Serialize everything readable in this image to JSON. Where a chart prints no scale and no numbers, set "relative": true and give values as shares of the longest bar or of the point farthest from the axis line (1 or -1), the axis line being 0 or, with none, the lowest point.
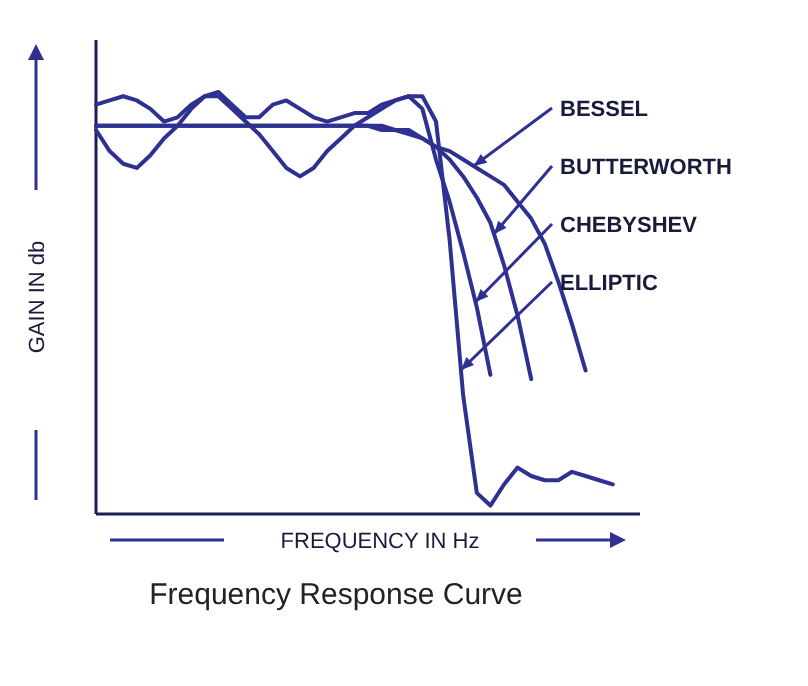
{
  "chart_data": {
    "type": "line",
    "relative": true,
    "title": "Frequency Response Curve",
    "xlabel": "FREQUENCY IN Hz",
    "ylabel": "GAIN IN db",
    "tick_labels": false,
    "categories": [
      null,
      null,
      null,
      null,
      null,
      null,
      null,
      null,
      null,
      null,
      null,
      null,
      null,
      null,
      null,
      null,
      null,
      null,
      null,
      null,
      null,
      null,
      null,
      null,
      null,
      null,
      null,
      null,
      null,
      null,
      null,
      null,
      null,
      null,
      null,
      null,
      null,
      null,
      null,
      null,
      null
    ],
    "series": [
      {
        "color": "#2e3192",
        "values": [
          0.92,
          0.92,
          0.92,
          0.92,
          0.92,
          0.92,
          0.92,
          0.92,
          0.92,
          0.92,
          0.92,
          0.92,
          0.92,
          0.92,
          0.92,
          0.92,
          0.92,
          0.92,
          0.92,
          0.92,
          0.92,
          0.91,
          0.91,
          0.9,
          0.89,
          0.87,
          0.86,
          0.84,
          0.82,
          0.8,
          0.78,
          0.74,
          0.7,
          0.64,
          0.55,
          0.45,
          0.34,
          null,
          null,
          null,
          null
        ]
      },
      {
        "color": "#2e3192",
        "values": [
          0.92,
          0.92,
          0.92,
          0.92,
          0.92,
          0.92,
          0.92,
          0.92,
          0.92,
          0.92,
          0.92,
          0.92,
          0.92,
          0.92,
          0.92,
          0.92,
          0.92,
          0.92,
          0.92,
          0.92,
          0.92,
          0.92,
          0.91,
          0.91,
          0.89,
          0.87,
          0.84,
          0.8,
          0.75,
          0.69,
          0.59,
          0.47,
          0.32,
          null,
          null,
          null,
          null,
          null,
          null,
          null,
          null
        ]
      },
      {
        "color": "#2e3192",
        "values": [
          0.97,
          0.98,
          0.99,
          0.98,
          0.96,
          0.93,
          0.94,
          0.97,
          0.99,
          1,
          0.97,
          0.94,
          0.94,
          0.97,
          0.98,
          0.96,
          0.94,
          0.93,
          0.94,
          0.95,
          0.95,
          0.97,
          0.98,
          0.99,
          0.96,
          0.84,
          0.74,
          0.62,
          0.49,
          0.33,
          null,
          null,
          null,
          null,
          null,
          null,
          null,
          null,
          null,
          null,
          null
        ]
      },
      {
        "color": "#2e3192",
        "values": [
          0.91,
          0.86,
          0.83,
          0.82,
          0.85,
          0.89,
          0.92,
          0.96,
          0.99,
          0.99,
          0.96,
          0.93,
          0.9,
          0.86,
          0.82,
          0.8,
          0.82,
          0.86,
          0.89,
          0.92,
          0.94,
          0.96,
          0.98,
          0.99,
          0.99,
          0.93,
          0.65,
          0.28,
          0.05,
          0.02,
          0.07,
          0.11,
          0.09,
          0.08,
          0.08,
          0.1,
          0.09,
          0.08,
          0.07,
          null,
          null
        ]
      }
    ],
    "annotations": [
      "BESSEL",
      "BUTTERWORTH",
      "CHEBYSHEV",
      "ELLIPTIC"
    ]
  }
}
